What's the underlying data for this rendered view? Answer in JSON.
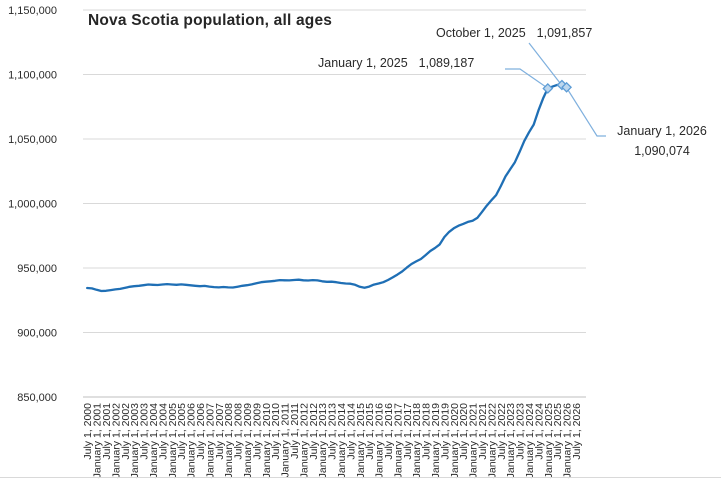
{
  "chart_data": {
    "type": "line",
    "title": "Nova Scotia population, all ages",
    "series_name": "Nova Scotia population",
    "unit": "persons",
    "frequency": "quarterly",
    "x_start": "July 1, 2000",
    "x_end_data": "January 1, 2026",
    "x_end_axis": "July 1, 2026",
    "ylim": [
      850000,
      1150000
    ],
    "ytick_step": 50000,
    "grid": "horizontal",
    "legend": "none",
    "y_tick_labels": [
      "1,150,000",
      "1,100,000",
      "1,050,000",
      "1,000,000",
      "950,000",
      "900,000",
      "850,000"
    ],
    "x_tick_labels": [
      "July 1, 2000",
      "January 1, 2001",
      "July 1, 2001",
      "January 1, 2002",
      "July 1, 2002",
      "January 1, 2003",
      "July 1, 2003",
      "January 1, 2004",
      "July 1, 2004",
      "January 1, 2005",
      "July 1, 2005",
      "January 1, 2006",
      "July 1, 2006",
      "January 1, 2007",
      "July 1, 2007",
      "January 1, 2008",
      "July 1, 2008",
      "January 1, 2009",
      "July 1, 2009",
      "January 1, 2010",
      "July 1, 2010",
      "January 1, 2011",
      "July 1, 2011",
      "January 1, 2012",
      "July 1, 2012",
      "January 1, 2013",
      "July 1, 2013",
      "January 1, 2014",
      "July 1, 2014",
      "January 1, 2015",
      "July 1, 2015",
      "January 1, 2016",
      "July 1, 2016",
      "January 1, 2017",
      "July 1, 2017",
      "January 1, 2018",
      "July 1, 2018",
      "January 1, 2019",
      "July 1, 2019",
      "January 1, 2020",
      "July 1, 2020",
      "January 1, 2021",
      "July 1, 2021",
      "January 1, 2022",
      "July 1, 2022",
      "January 1, 2023",
      "July 1, 2023",
      "January 1, 2024",
      "July 1, 2024",
      "January 1, 2025",
      "July 1, 2025",
      "January 1, 2026",
      "July 1, 2026"
    ],
    "values": [
      934500,
      934200,
      933100,
      932200,
      932300,
      932900,
      933400,
      933800,
      934600,
      935400,
      935900,
      936200,
      936700,
      937200,
      937000,
      936800,
      937200,
      937500,
      937200,
      937000,
      937300,
      937000,
      936600,
      936200,
      935900,
      936100,
      935600,
      935200,
      935000,
      935300,
      935000,
      934900,
      935500,
      936200,
      936700,
      937300,
      938200,
      939000,
      939400,
      939700,
      940100,
      940600,
      940500,
      940400,
      940700,
      940900,
      940500,
      940300,
      940600,
      940400,
      939700,
      939300,
      939400,
      939000,
      938400,
      938000,
      937800,
      937000,
      935400,
      934700,
      935600,
      937100,
      938000,
      939000,
      940700,
      942700,
      944900,
      947300,
      950300,
      953100,
      955100,
      957000,
      960000,
      963200,
      965500,
      968300,
      974000,
      978000,
      980800,
      982800,
      984200,
      985700,
      986700,
      988800,
      993500,
      998300,
      1002500,
      1006500,
      1013500,
      1021000,
      1026500,
      1032000,
      1040000,
      1048500,
      1055200,
      1061200,
      1072000,
      1081500,
      1089187,
      1090600,
      1091900,
      1091857,
      1090074
    ],
    "annotations": [
      {
        "label": "January 1, 2025",
        "value": "1,089,187",
        "point_index": 98
      },
      {
        "label": "October 1, 2025",
        "value": "1,091,857",
        "point_index": 101
      },
      {
        "label": "January 1, 2026",
        "value": "1,090,074",
        "point_index": 102
      }
    ],
    "colors": {
      "line": "#1F6FB5",
      "marker_stroke": "#5B9BD5",
      "marker_fill": "#BDD7EE",
      "leader": "#7FB0DE",
      "gridline": "#D9D9D9",
      "axis_line": "#BFBFBF",
      "text": "#2a2a2a"
    }
  }
}
